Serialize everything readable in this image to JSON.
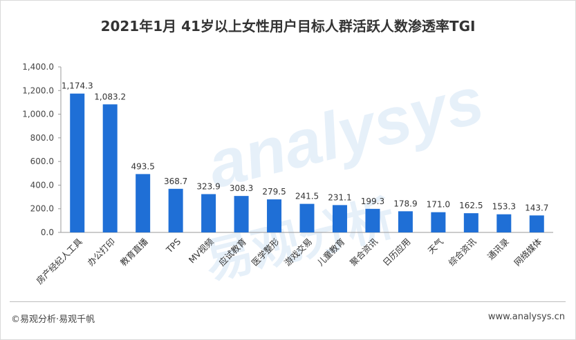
{
  "chart_data": {
    "type": "bar",
    "title": "2021年1月 41岁以上女性用户目标人群活跃人数渗透率TGI",
    "categories": [
      "房产经纪人工具",
      "办公打印",
      "教育直播",
      "TPS",
      "MV视频",
      "应试教育",
      "医学整形",
      "游戏交易",
      "儿童教育",
      "聚合资讯",
      "日历应用",
      "天气",
      "综合资讯",
      "通讯录",
      "网络媒体"
    ],
    "values": [
      1174.3,
      1083.2,
      493.5,
      368.7,
      323.9,
      308.3,
      279.5,
      241.5,
      231.1,
      199.3,
      178.9,
      171.0,
      162.5,
      153.3,
      143.7
    ],
    "value_labels": [
      "1,174.3",
      "1,083.2",
      "493.5",
      "368.7",
      "323.9",
      "308.3",
      "279.5",
      "241.5",
      "231.1",
      "199.3",
      "178.9",
      "171.0",
      "162.5",
      "153.3",
      "143.7"
    ],
    "yticks": [
      0,
      200,
      400,
      600,
      800,
      1000,
      1200,
      1400
    ],
    "ytick_labels": [
      "0.0",
      "200.0",
      "400.0",
      "600.0",
      "800.0",
      "1,000.0",
      "1,200.0",
      "1,400.0"
    ],
    "ylim": [
      0,
      1400
    ],
    "xlabel": "",
    "ylabel": "",
    "bar_color": "#1f6fd6",
    "grid": false,
    "legend": "none"
  },
  "footer": {
    "source": "©易观分析·易观千帆",
    "website": "www.analysys.cn"
  },
  "watermark": {
    "text_en": "analysys",
    "text_cn": "易观分析"
  }
}
